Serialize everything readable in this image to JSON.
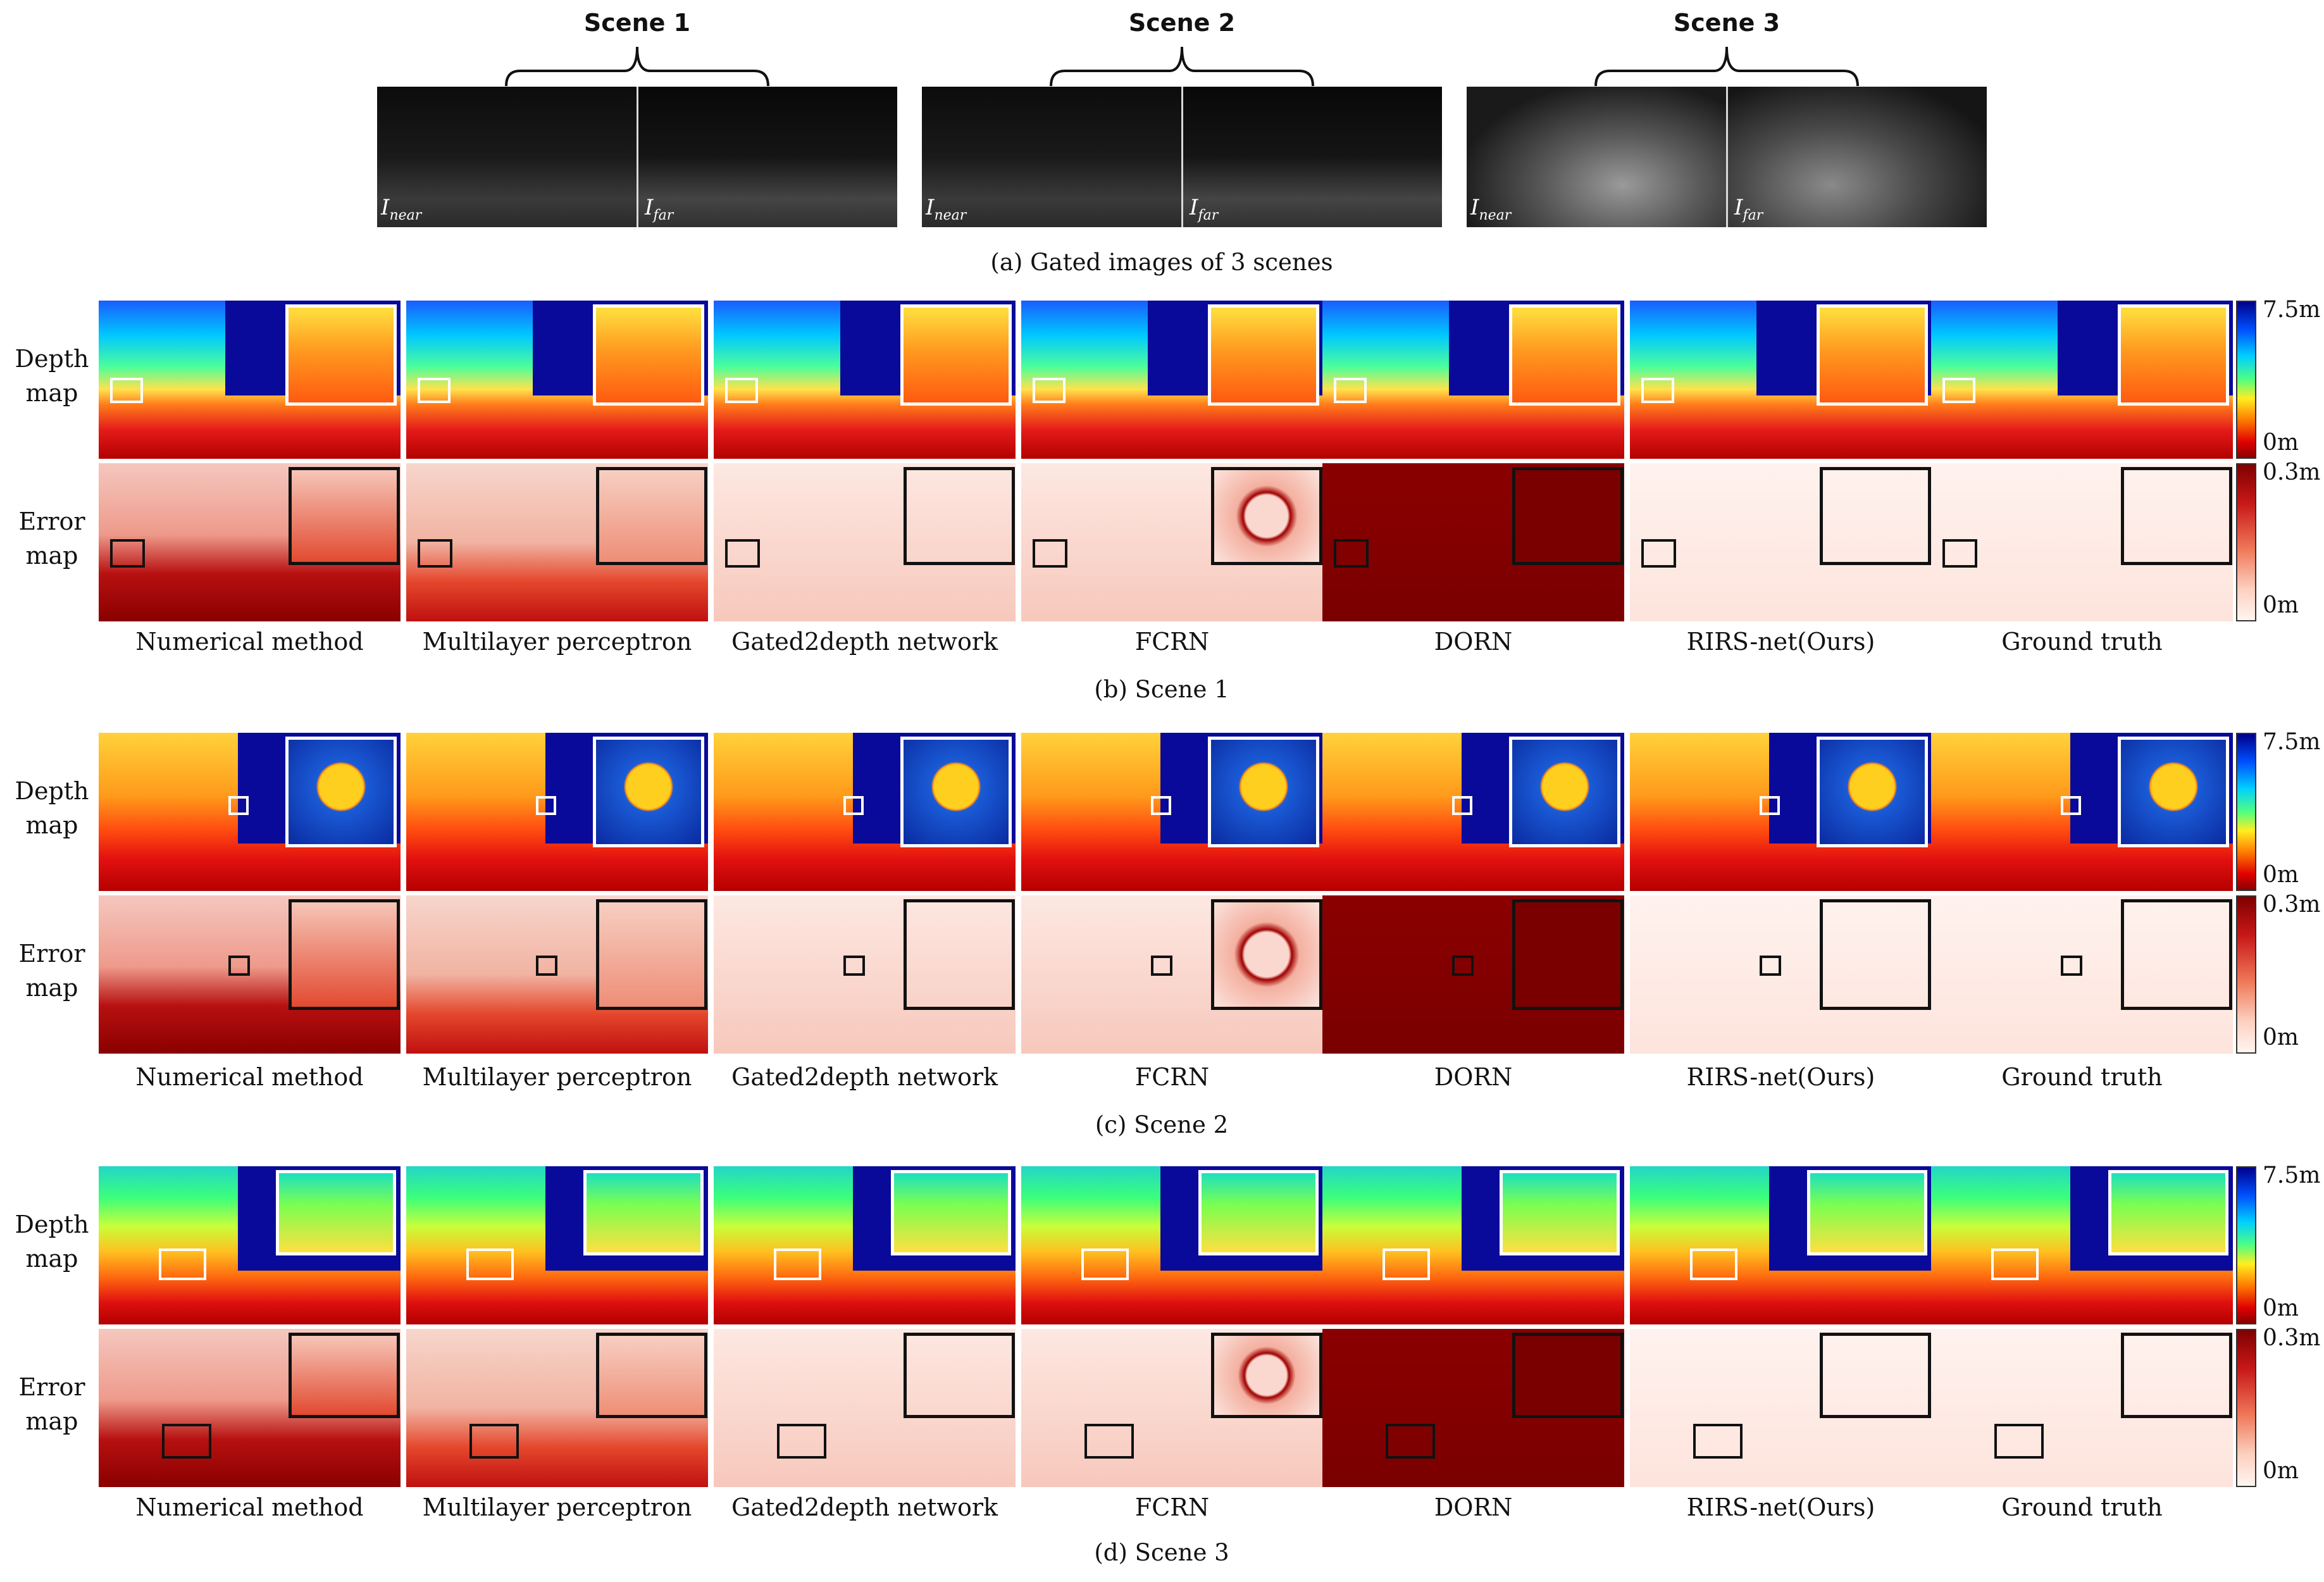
{
  "gated": {
    "scenes": [
      {
        "title": "Scene 1",
        "near": "I",
        "near_sub": "near",
        "far": "I",
        "far_sub": "far"
      },
      {
        "title": "Scene 2",
        "near": "I",
        "near_sub": "near",
        "far": "I",
        "far_sub": "far"
      },
      {
        "title": "Scene 3",
        "near": "I",
        "near_sub": "near",
        "far": "I",
        "far_sub": "far"
      }
    ],
    "caption": "(a) Gated images of 3 scenes"
  },
  "row_labels": {
    "depth_1": "Depth",
    "depth_2": "map",
    "error_1": "Error",
    "error_2": "map"
  },
  "methods": {
    "sets": [
      [
        "Numerical method",
        "Multilayer perceptron",
        "Gated2depth network",
        "FCRN",
        "DORN",
        "RIRS-net(Ours)",
        "Ground truth"
      ],
      [
        "Numerical method",
        "Multilayer perceptron",
        "Gated2depth network",
        "FCRN",
        "DORN",
        "RIRS-net(Ours)",
        "Ground truth"
      ],
      [
        "Numerical method",
        "Multilayer perceptron",
        "Gated2depth network",
        "FCRN",
        "DORN",
        "RIRS-net(Ours)",
        "Ground truth"
      ]
    ]
  },
  "captions": {
    "b": "(b) Scene 1",
    "c": "(c) Scene 2",
    "d": "(d) Scene 3"
  },
  "colorbar": {
    "depth_max": "7.5m",
    "depth_min": "0m",
    "error_max": "0.3m",
    "error_min": "0m"
  },
  "colors": {
    "depth_far": "#00008b",
    "depth_near": "#8b0000",
    "error_high": "#800000",
    "error_low": "#fff5f0"
  }
}
